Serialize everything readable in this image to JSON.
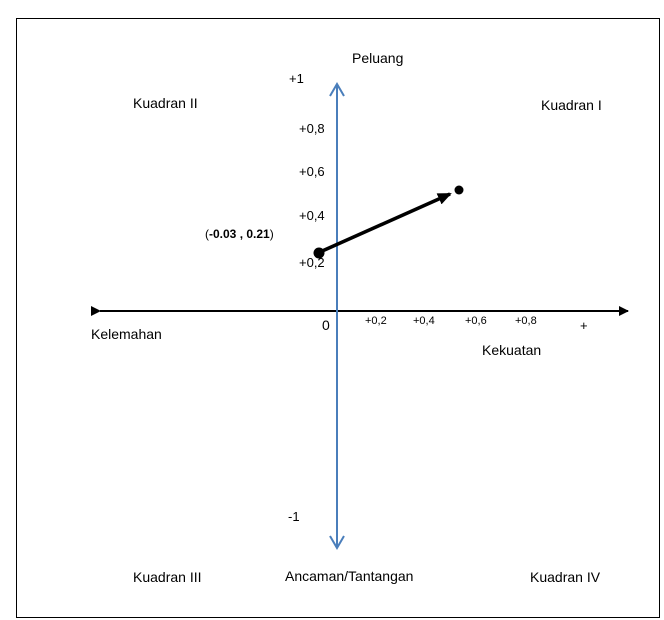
{
  "quadrants": {
    "q1": "Kuadran I",
    "q2": "Kuadran II",
    "q3": "Kuadran III",
    "q4": "Kuadran IV"
  },
  "axes": {
    "top": "Peluang",
    "bottom": "Ancaman/Tantangan",
    "left": "Kelemahan",
    "right": "Kekuatan",
    "origin": "0"
  },
  "y_ticks": [
    "+1",
    "+0,8",
    "+0,6",
    "+0,4",
    "+0,2",
    "-1"
  ],
  "x_ticks": [
    "+0,2",
    "+0,4",
    "+0,6",
    "+0,8",
    "+"
  ],
  "point": {
    "open": "(",
    "x": "-0.03",
    "sep": " , ",
    "y": "0.21",
    "close": ")",
    "x_value": -0.03,
    "y_value": 0.21
  },
  "colors": {
    "vertical_axis": "#4a7ebb",
    "horizontal_axis": "#000000",
    "vector": "#000000"
  }
}
